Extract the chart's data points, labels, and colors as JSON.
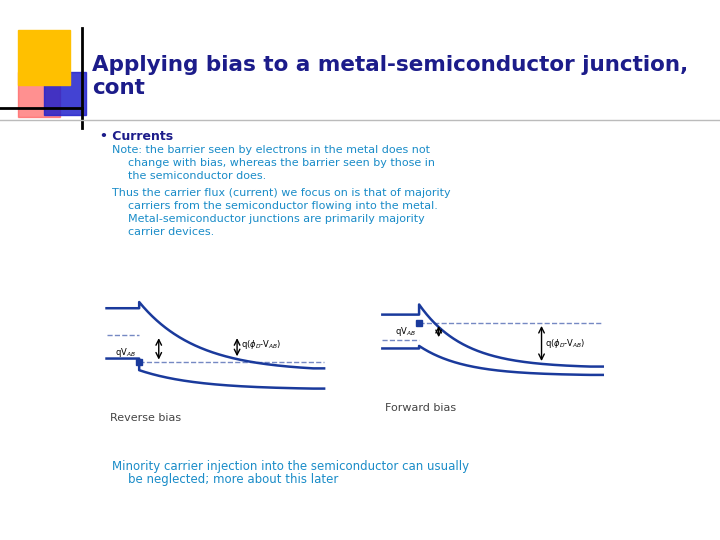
{
  "title_line1": "Applying bias to a metal-semiconductor junction,",
  "title_line2": "cont",
  "title_color": "#1c1c8a",
  "title_fontsize": 15.5,
  "bg_color": "#ffffff",
  "bullet_color": "#1c1c8a",
  "bullet_text": "Currents",
  "bullet_fontsize": 9,
  "note1_line1": "Note: the barrier seen by electrons in the metal does not",
  "note1_line2": "change with bias, whereas the barrier seen by those in",
  "note1_line3": "the semiconductor does.",
  "note2_line1": "Thus the carrier flux (current) we focus on is that of majority",
  "note2_line2": "carriers from the semiconductor flowing into the metal.",
  "note2_line3": "Metal-semiconductor junctions are primarily majority",
  "note2_line4": "carrier devices.",
  "minority_line1": "Minority carrier injection into the semiconductor can usually",
  "minority_line2": "be neglected; more about this later",
  "note_color": "#1a8cc8",
  "minority_color": "#1a8cc8",
  "text_fontsize": 8.0,
  "minority_fontsize": 8.5,
  "diagram_label_left": "Reverse bias",
  "diagram_label_right": "Forward bias",
  "diagram_label_color": "#444444",
  "curve_color": "#1a3a9c",
  "deco_yellow": "#ffc000",
  "deco_red": "#ff5555",
  "deco_blue": "#2222cc",
  "sep_color": "#bbbbbb"
}
